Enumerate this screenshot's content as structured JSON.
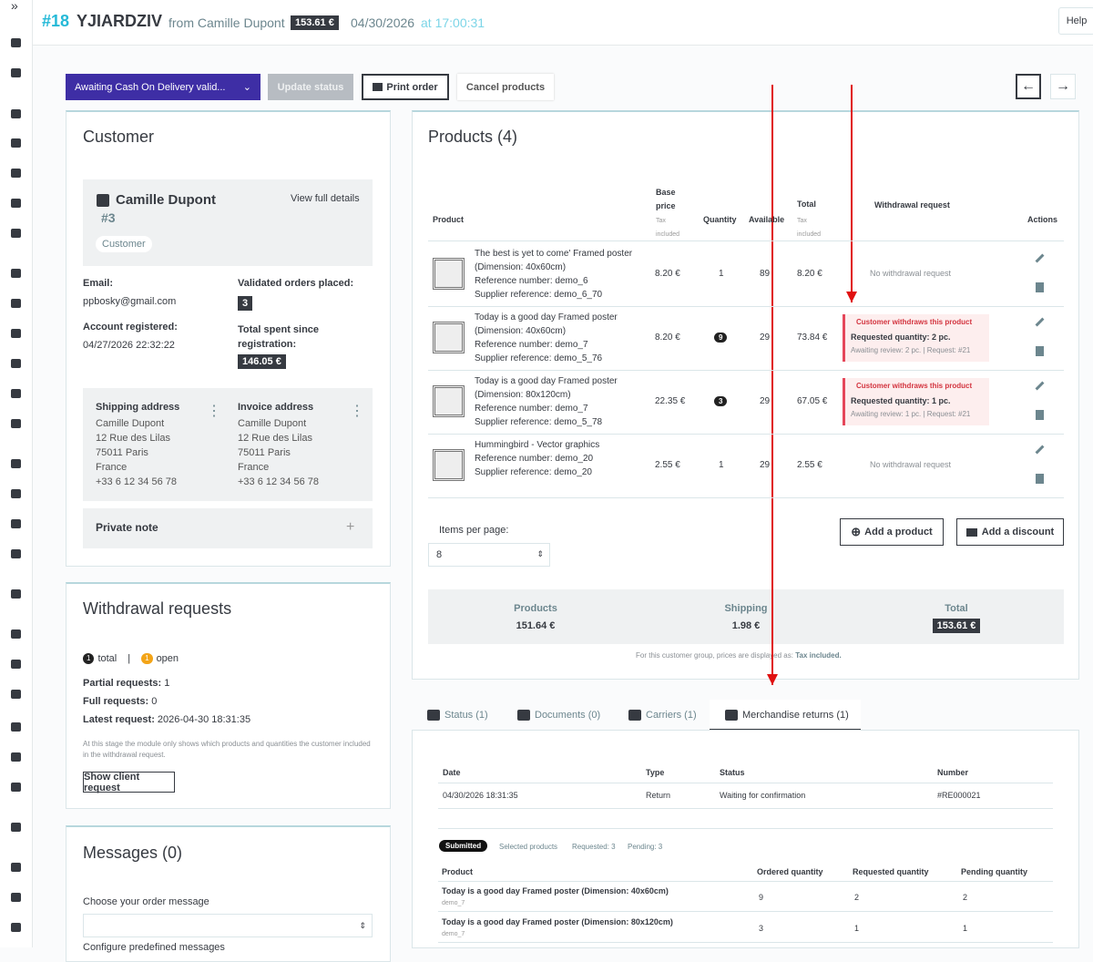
{
  "sidebar": {
    "toggle": "»"
  },
  "header": {
    "order_id": "#18",
    "reference": "YJIARDZIV",
    "from": "from Camille Dupont",
    "total": "153.61 €",
    "date": "04/30/2026",
    "at": "at 17:00:31",
    "help": "Help"
  },
  "toolbar": {
    "status": "Awaiting Cash On Delivery valid...",
    "update": "Update status",
    "print": "Print order",
    "cancel": "Cancel products"
  },
  "customer": {
    "title": "Customer",
    "name": "Camille Dupont",
    "id": "#3",
    "view": "View full details",
    "badge": "Customer",
    "email_label": "Email:",
    "email": "ppbosky@gmail.com",
    "orders_label": "Validated orders placed:",
    "orders": "3",
    "registered_label": "Account registered:",
    "registered": "04/27/2026 22:32:22",
    "spent_label": "Total spent since registration:",
    "spent": "146.05 €",
    "shipping": {
      "title": "Shipping address",
      "lines": [
        "Camille Dupont",
        "12 Rue des Lilas",
        "75011 Paris",
        "France",
        "+33 6 12 34 56 78"
      ]
    },
    "invoice": {
      "title": "Invoice address",
      "lines": [
        "Camille Dupont",
        "12 Rue des Lilas",
        "75011 Paris",
        "France",
        "+33 6 12 34 56 78"
      ]
    },
    "private_note": "Private note"
  },
  "withdrawal": {
    "title": "Withdrawal requests",
    "total_count": "1",
    "total_label": "total",
    "separator": "|",
    "open_count": "1",
    "open_label": "open",
    "partial_label": "Partial requests:",
    "partial": "1",
    "full_label": "Full requests:",
    "full": "0",
    "latest_label": "Latest request:",
    "latest": "2026-04-30 18:31:35",
    "note": "At this stage the module only shows which products and quantities the customer included in the withdrawal request.",
    "button": "Show client request"
  },
  "messages": {
    "title": "Messages (0)",
    "choose": "Choose your order message",
    "configure": "Configure predefined messages"
  },
  "products": {
    "title": "Products (4)",
    "columns": {
      "product": "Product",
      "base_price": "Base price",
      "base_price_note": "Tax included",
      "quantity": "Quantity",
      "available": "Available",
      "total": "Total",
      "total_note": "Tax included",
      "withdrawal": "Withdrawal request",
      "actions": "Actions"
    },
    "rows": [
      {
        "lines": [
          "The best is yet to come' Framed poster",
          "(Dimension: 40x60cm)",
          "Reference number: demo_6",
          "Supplier reference: demo_6_70"
        ],
        "price": "8.20 €",
        "quantity": "1",
        "available": "89",
        "total": "8.20 €",
        "withdrawal": {
          "text": "No withdrawal request"
        }
      },
      {
        "lines": [
          "Today is a good day Framed poster",
          "(Dimension: 40x60cm)",
          "Reference number: demo_7",
          "Supplier reference: demo_5_76"
        ],
        "price": "8.20 €",
        "quantity": "9",
        "available": "29",
        "total": "73.84 €",
        "withdrawal": {
          "status": "Customer withdraws this product",
          "requested": "Requested quantity: 2 pc.",
          "detail": "Awaiting review: 2 pc. | Request: #21"
        }
      },
      {
        "lines": [
          "Today is a good day Framed poster",
          "(Dimension: 80x120cm)",
          "Reference number: demo_7",
          "Supplier reference: demo_5_78"
        ],
        "price": "22.35 €",
        "quantity": "3",
        "available": "29",
        "total": "67.05 €",
        "withdrawal": {
          "status": "Customer withdraws this product",
          "requested": "Requested quantity: 1 pc.",
          "detail": "Awaiting review: 1 pc. | Request: #21"
        }
      },
      {
        "lines": [
          "Hummingbird - Vector graphics",
          "Reference number: demo_20",
          "Supplier reference: demo_20"
        ],
        "price": "2.55 €",
        "quantity": "1",
        "available": "29",
        "total": "2.55 €",
        "withdrawal": {
          "text": "No withdrawal request"
        }
      }
    ],
    "items_per_page_label": "Items per page:",
    "items_per_page": "8",
    "add_product": "Add a product",
    "add_discount": "Add a discount",
    "summary": {
      "products_label": "Products",
      "products": "151.64 €",
      "shipping_label": "Shipping",
      "shipping": "1.98 €",
      "total_label": "Total",
      "total": "153.61 €"
    },
    "footnote_prefix": "For this customer group, prices are displayed as:",
    "footnote_value": "Tax included."
  },
  "tabs": [
    "Status (1)",
    "Documents (0)",
    "Carriers (1)",
    "Merchandise returns (1)"
  ],
  "returns": {
    "columns": [
      "Date",
      "Type",
      "Status",
      "Number"
    ],
    "rows": [
      [
        "04/30/2026 18:31:35",
        "Return",
        "Waiting for confirmation",
        "#RE000021"
      ]
    ],
    "badge": "Submitted",
    "selected": "Selected products",
    "requested": "Requested: 3",
    "pending": "Pending: 3",
    "product_columns": [
      "Product",
      "Ordered quantity",
      "Requested quantity",
      "Pending quantity"
    ],
    "product_rows": [
      {
        "name": "Today is a good day Framed poster (Dimension: 40x60cm)",
        "ref": "demo_7",
        "values": [
          "9",
          "2",
          "2"
        ]
      },
      {
        "name": "Today is a good day Framed poster (Dimension: 80x120cm)",
        "ref": "demo_7",
        "values": [
          "3",
          "1",
          "1"
        ]
      }
    ]
  }
}
